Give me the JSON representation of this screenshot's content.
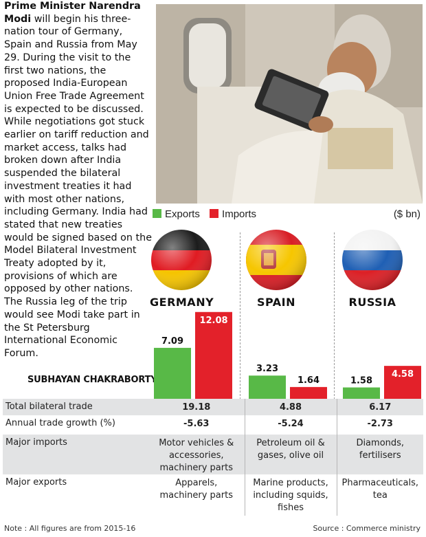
{
  "story": {
    "lead": "Prime Minister Narendra Modi",
    "body": " will begin his three-nation tour of Germany, Spain and Russia from May 29. During the visit to the first two nations, the proposed India-European Union Free Trade Agreement is expected to be discussed. While negotiations got stuck earlier on tariff reduction and market access, talks had broken down after India suspended the bilateral investment treaties it had with most other nations, including Germany. India had stated that new treaties would be signed based on the Model Bilateral Investment Treaty adopted by it, provisions of which are opposed by other nations. The Russia leg of the trip would see Modi take part in the St Petersburg International Economic Forum.",
    "byline": "SUBHAYAN CHAKRABORTY"
  },
  "chart_data": {
    "type": "bar",
    "categories": [
      "GERMANY",
      "SPAIN",
      "RUSSIA"
    ],
    "series": [
      {
        "name": "Exports",
        "color": "#58b947",
        "values": [
          7.09,
          3.23,
          1.58
        ]
      },
      {
        "name": "Imports",
        "color": "#e3212a",
        "values": [
          12.08,
          1.64,
          4.58
        ]
      }
    ],
    "unit": "($ bn)",
    "legend_position": "top-left",
    "flags": [
      "germany-flag-icon",
      "spain-flag-icon",
      "russia-flag-icon"
    ]
  },
  "table": {
    "rows": [
      {
        "label": "Total bilateral trade",
        "values": [
          "19.18",
          "4.88",
          "6.17"
        ],
        "bold": true
      },
      {
        "label": "Annual trade growth (%)",
        "values": [
          "-5.63",
          "-5.24",
          "-2.73"
        ],
        "bold": true
      },
      {
        "label": "Major imports",
        "values": [
          "Motor vehicles & accessories, machinery parts",
          "Petroleum oil & gases, olive oil",
          "Diamonds, fertilisers"
        ],
        "bold": false
      },
      {
        "label": "Major exports",
        "values": [
          "Apparels, machinery parts",
          "Marine products, including squids, fishes",
          "Pharmaceuticals, tea"
        ],
        "bold": false
      }
    ]
  },
  "note": "Note : All figures are from 2015-16",
  "source": "Source : Commerce ministry"
}
